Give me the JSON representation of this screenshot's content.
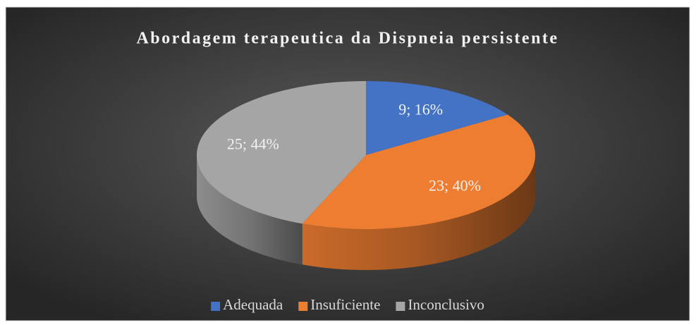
{
  "chart_data": {
    "type": "pie",
    "title": "Abordagem terapeutica da Dispneia persistente",
    "categories": [
      "Adequada",
      "Insuficiente",
      "Inconclusivo"
    ],
    "values": [
      9,
      23,
      25
    ],
    "value_labels": [
      "9; 16%",
      "23; 40%",
      "25; 44%"
    ],
    "colors": [
      "#4472c4",
      "#ed7d31",
      "#a5a5a5"
    ],
    "legend": "bottom"
  }
}
